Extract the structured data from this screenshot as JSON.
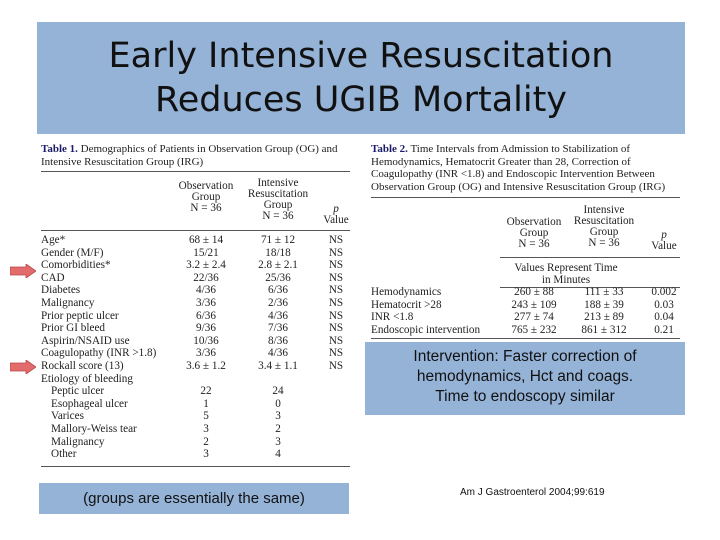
{
  "slide": {
    "title_line1": "Early Intensive Resuscitation",
    "title_line2": "Reduces UGIB Mortality",
    "intervention_line1": "Intervention: Faster correction of",
    "intervention_line2": "hemodynamics, Hct and coags.",
    "intervention_line3": "Time to endoscopy similar",
    "groups_note": "(groups are essentially the same)",
    "citation": "Am J Gastroenterol 2004;99:619",
    "arrow_color": "#e26b6b",
    "box_color": "#95b3d7"
  },
  "table1": {
    "caption_label": "Table 1.",
    "caption_text": "Demographics of Patients in Observation Group (OG) and Intensive Resuscitation Group (IRG)",
    "col1_header": [
      "Observation",
      "Group",
      "N = 36"
    ],
    "col2_header": [
      "Intensive",
      "Resuscitation",
      "Group",
      "N = 36"
    ],
    "col3_header": [
      "p",
      "Value"
    ],
    "rows": [
      {
        "label": "Age*",
        "og": "68 ± 14",
        "irg": "71 ± 12",
        "p": "NS"
      },
      {
        "label": "Gender (M/F)",
        "og": "15/21",
        "irg": "18/18",
        "p": "NS"
      },
      {
        "label": "Comorbidities*",
        "og": "3.2 ± 2.4",
        "irg": "2.8 ± 2.1",
        "p": "NS"
      },
      {
        "label": "CAD",
        "og": "22/36",
        "irg": "25/36",
        "p": "NS"
      },
      {
        "label": "Diabetes",
        "og": "4/36",
        "irg": "6/36",
        "p": "NS"
      },
      {
        "label": "Malignancy",
        "og": "3/36",
        "irg": "2/36",
        "p": "NS"
      },
      {
        "label": "Prior peptic ulcer",
        "og": "6/36",
        "irg": "4/36",
        "p": "NS"
      },
      {
        "label": "Prior GI bleed",
        "og": "9/36",
        "irg": "7/36",
        "p": "NS"
      },
      {
        "label": "Aspirin/NSAID use",
        "og": "10/36",
        "irg": "8/36",
        "p": "NS"
      },
      {
        "label": "Coagulopathy (INR >1.8)",
        "og": "3/36",
        "irg": "4/36",
        "p": "NS"
      },
      {
        "label": "Rockall score (13)",
        "og": "3.6 ± 1.2",
        "irg": "3.4 ± 1.1",
        "p": "NS"
      },
      {
        "label": "Etiology of bleeding",
        "og": "",
        "irg": "",
        "p": ""
      },
      {
        "label": "Peptic ulcer",
        "og": "22",
        "irg": "24",
        "p": ""
      },
      {
        "label": "Esophageal ulcer",
        "og": "1",
        "irg": "0",
        "p": ""
      },
      {
        "label": "Varices",
        "og": "5",
        "irg": "3",
        "p": ""
      },
      {
        "label": "Mallory-Weiss tear",
        "og": "3",
        "irg": "2",
        "p": ""
      },
      {
        "label": "Malignancy",
        "og": "2",
        "irg": "3",
        "p": ""
      },
      {
        "label": "Other",
        "og": "3",
        "irg": "4",
        "p": ""
      }
    ]
  },
  "table2": {
    "caption_label": "Table 2.",
    "caption_text": "Time Intervals from Admission to Stabilization of Hemodynamics, Hematocrit Greater than 28, Correction of Coagulopathy (INR <1.8) and Endoscopic Intervention Between Observation Group (OG) and Intensive Resuscitation Group (IRG)",
    "col1_header": [
      "Observation",
      "Group",
      "N = 36"
    ],
    "col2_header": [
      "Intensive",
      "Resuscitation",
      "Group",
      "N = 36"
    ],
    "col3_header": [
      "p",
      "Value"
    ],
    "subheader_line1": "Values Represent Time",
    "subheader_line2": "in Minutes",
    "rows": [
      {
        "label": "Hemodynamics",
        "og": "260 ± 88",
        "irg": "111 ± 33",
        "p": "0.002"
      },
      {
        "label": "Hematocrit >28",
        "og": "243 ± 109",
        "irg": "188 ± 39",
        "p": "0.03"
      },
      {
        "label": "INR <1.8",
        "og": "277 ± 74",
        "irg": "213 ± 89",
        "p": "0.04"
      },
      {
        "label": "Endoscopic intervention",
        "og": "765 ± 232",
        "irg": "861 ± 312",
        "p": "0.21"
      }
    ]
  }
}
